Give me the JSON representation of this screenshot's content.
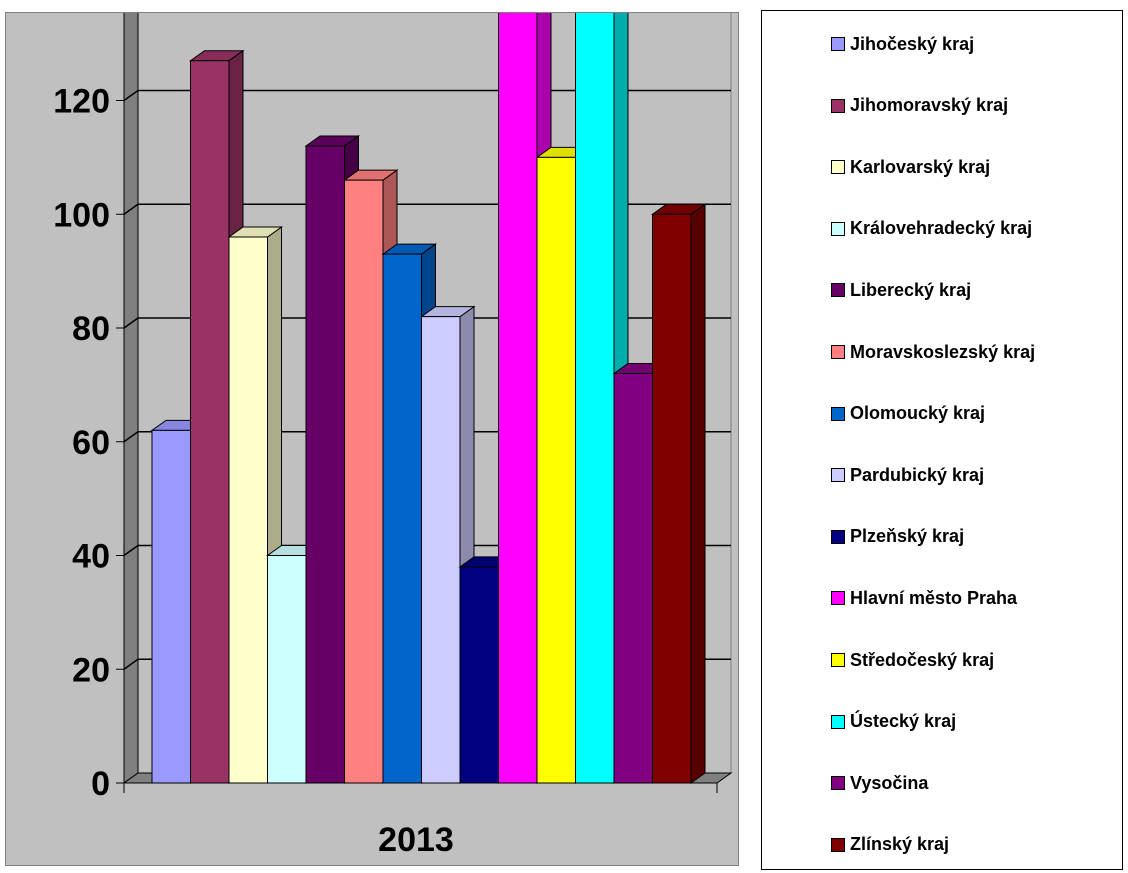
{
  "chart_data": {
    "type": "bar",
    "style": "3d-clustered-column",
    "categories": [
      "2013"
    ],
    "ylim": [
      0,
      160
    ],
    "yticks": [
      0,
      20,
      40,
      60,
      80,
      100,
      120,
      140,
      160
    ],
    "grid": true,
    "legend_position": "right",
    "series": [
      {
        "name": "Jihočeský kraj",
        "values": [
          62
        ],
        "color": "#9999ff"
      },
      {
        "name": "Jihomoravský kraj",
        "values": [
          127
        ],
        "color": "#993366"
      },
      {
        "name": "Karlovarský kraj",
        "values": [
          96
        ],
        "color": "#ffffcc"
      },
      {
        "name": "Královehradecký kraj",
        "values": [
          40
        ],
        "color": "#ccffff"
      },
      {
        "name": "Liberecký kraj",
        "values": [
          112
        ],
        "color": "#660066"
      },
      {
        "name": "Moravskoslezský kraj",
        "values": [
          106
        ],
        "color": "#ff8080"
      },
      {
        "name": "Olomoucký kraj",
        "values": [
          93
        ],
        "color": "#0066cc"
      },
      {
        "name": "Pardubický kraj",
        "values": [
          82
        ],
        "color": "#ccccff"
      },
      {
        "name": "Plzeňský kraj",
        "values": [
          38
        ],
        "color": "#000080"
      },
      {
        "name": "Hlavní město Praha",
        "values": [
          154
        ],
        "color": "#ff00ff"
      },
      {
        "name": "Středočeský kraj",
        "values": [
          110
        ],
        "color": "#ffff00"
      },
      {
        "name": "Ústecký kraj",
        "values": [
          155
        ],
        "color": "#00ffff"
      },
      {
        "name": "Vysočina",
        "values": [
          72
        ],
        "color": "#800080"
      },
      {
        "name": "Zlínský kraj",
        "values": [
          100
        ],
        "color": "#800000"
      }
    ]
  }
}
